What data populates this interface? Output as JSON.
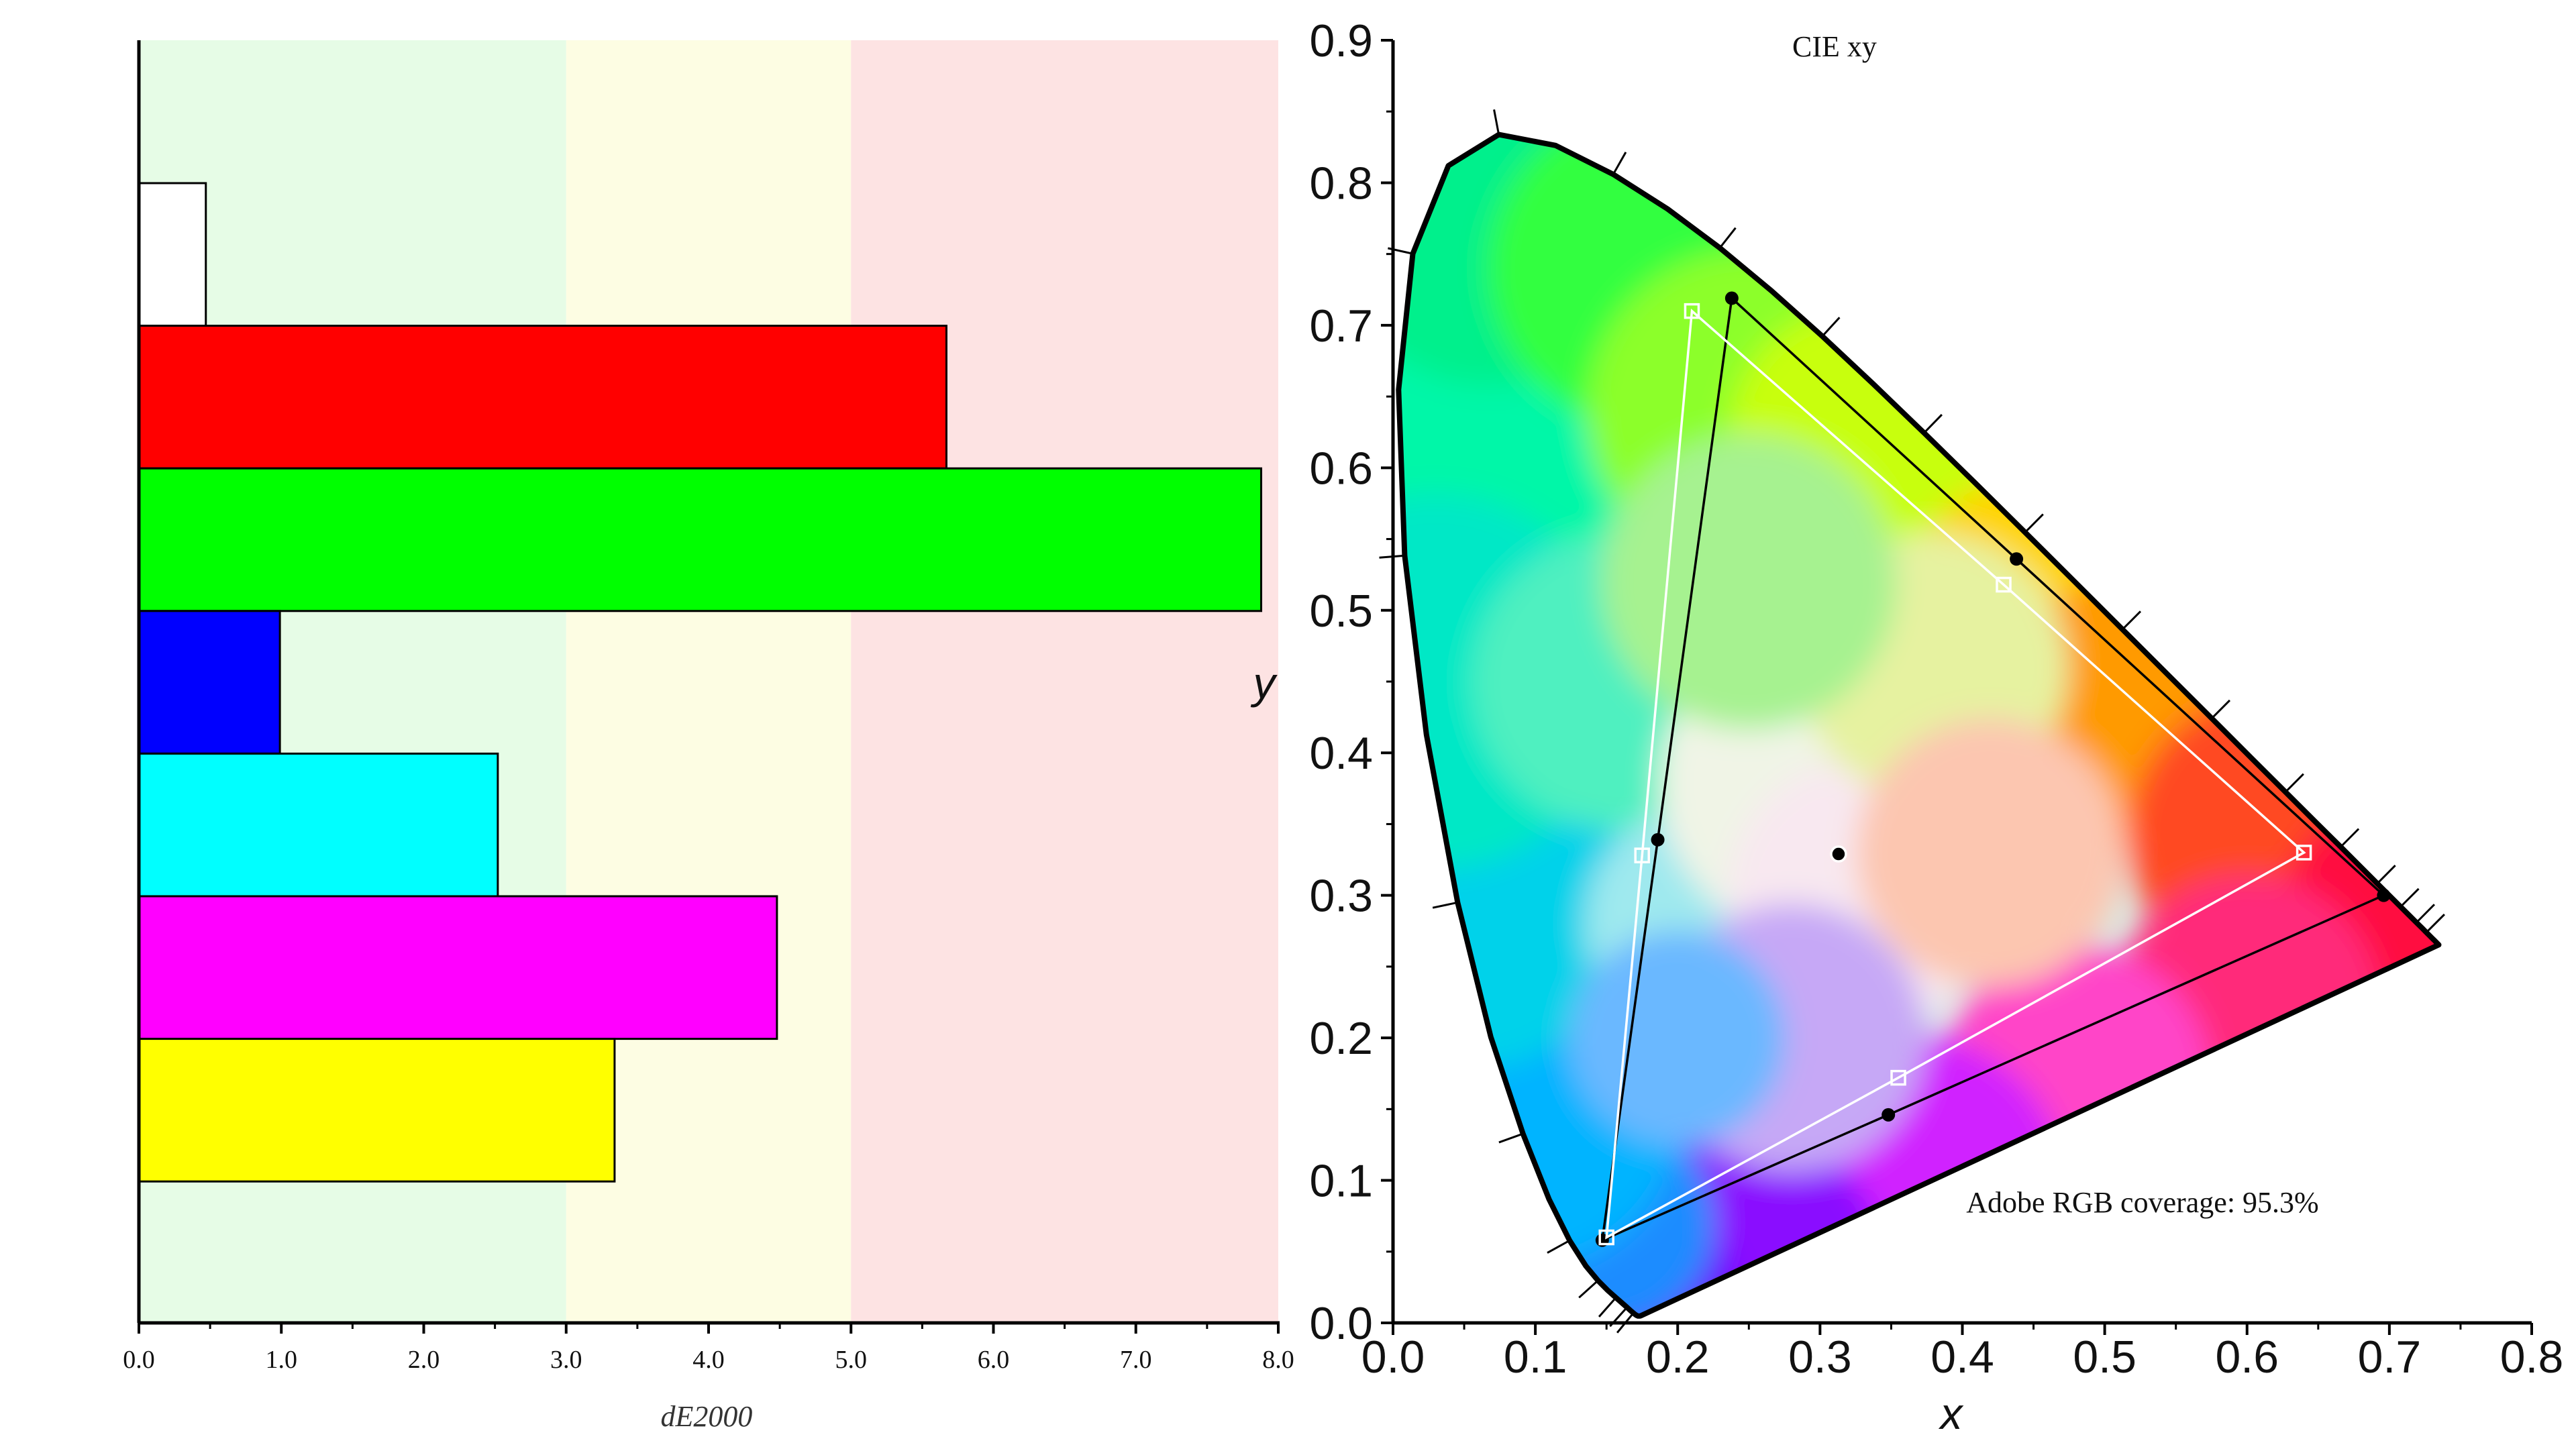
{
  "chart_data": [
    {
      "type": "bar",
      "orientation": "horizontal",
      "xlabel": "dE2000",
      "xlim": [
        0,
        8
      ],
      "xticks": [
        "0.0",
        "1.0",
        "2.0",
        "3.0",
        "4.0",
        "5.0",
        "6.0",
        "7.0",
        "8.0"
      ],
      "bands": [
        {
          "from": 0,
          "to": 3,
          "color": "#e6fce6"
        },
        {
          "from": 3,
          "to": 5,
          "color": "#fdfde3"
        },
        {
          "from": 5,
          "to": 8,
          "color": "#fde3e3"
        }
      ],
      "bars": [
        {
          "color": "#ffffff",
          "value": 0.47
        },
        {
          "color": "#ff0000",
          "value": 5.67
        },
        {
          "color": "#00ff00",
          "value": 7.88
        },
        {
          "color": "#0000ff",
          "value": 0.99
        },
        {
          "color": "#00ffff",
          "value": 2.52
        },
        {
          "color": "#ff00ff",
          "value": 4.48
        },
        {
          "color": "#ffff00",
          "value": 3.34
        }
      ]
    },
    {
      "type": "scatter",
      "title": "CIE xy",
      "xlabel": "x",
      "ylabel": "y",
      "xlim": [
        0,
        0.8
      ],
      "ylim": [
        0,
        0.9
      ],
      "xticks": [
        "0.0",
        "0.1",
        "0.2",
        "0.3",
        "0.4",
        "0.5",
        "0.6",
        "0.7",
        "0.8"
      ],
      "yticks": [
        "0.0",
        "0.1",
        "0.2",
        "0.3",
        "0.4",
        "0.5",
        "0.6",
        "0.7",
        "0.8",
        "0.9"
      ],
      "annotation": "Adobe RGB coverage: 95.3%",
      "spectral_locus": [
        [
          0.1741,
          0.005
        ],
        [
          0.174,
          0.005
        ],
        [
          0.1738,
          0.0049
        ],
        [
          0.1736,
          0.0049
        ],
        [
          0.1733,
          0.0048
        ],
        [
          0.173,
          0.0048
        ],
        [
          0.1726,
          0.0048
        ],
        [
          0.1721,
          0.0048
        ],
        [
          0.1714,
          0.0051
        ],
        [
          0.1703,
          0.0058
        ],
        [
          0.1689,
          0.0069
        ],
        [
          0.1669,
          0.0086
        ],
        [
          0.1644,
          0.0109
        ],
        [
          0.1611,
          0.0138
        ],
        [
          0.1566,
          0.0177
        ],
        [
          0.151,
          0.0227
        ],
        [
          0.144,
          0.0297
        ],
        [
          0.1355,
          0.0399
        ],
        [
          0.1241,
          0.0578
        ],
        [
          0.1096,
          0.0868
        ],
        [
          0.0913,
          0.1327
        ],
        [
          0.0687,
          0.2007
        ],
        [
          0.0454,
          0.295
        ],
        [
          0.0235,
          0.4127
        ],
        [
          0.0082,
          0.5384
        ],
        [
          0.0039,
          0.6548
        ],
        [
          0.0139,
          0.7502
        ],
        [
          0.0389,
          0.812
        ],
        [
          0.0743,
          0.8338
        ],
        [
          0.1142,
          0.8262
        ],
        [
          0.1547,
          0.8059
        ],
        [
          0.1929,
          0.7816
        ],
        [
          0.2296,
          0.7543
        ],
        [
          0.2658,
          0.7243
        ],
        [
          0.3016,
          0.6923
        ],
        [
          0.3373,
          0.6589
        ],
        [
          0.3731,
          0.6245
        ],
        [
          0.4087,
          0.5896
        ],
        [
          0.4441,
          0.5547
        ],
        [
          0.4788,
          0.5202
        ],
        [
          0.5125,
          0.4866
        ],
        [
          0.5448,
          0.4544
        ],
        [
          0.5752,
          0.4242
        ],
        [
          0.6029,
          0.3965
        ],
        [
          0.627,
          0.3725
        ],
        [
          0.6482,
          0.3514
        ],
        [
          0.6658,
          0.334
        ],
        [
          0.6801,
          0.3197
        ],
        [
          0.6915,
          0.3083
        ],
        [
          0.7006,
          0.2993
        ],
        [
          0.7079,
          0.292
        ],
        [
          0.714,
          0.2859
        ],
        [
          0.719,
          0.2809
        ],
        [
          0.723,
          0.277
        ],
        [
          0.726,
          0.274
        ],
        [
          0.7283,
          0.2717
        ],
        [
          0.73,
          0.27
        ],
        [
          0.7311,
          0.2689
        ],
        [
          0.732,
          0.268
        ],
        [
          0.7327,
          0.2673
        ],
        [
          0.7334,
          0.2666
        ],
        [
          0.734,
          0.266
        ],
        [
          0.7344,
          0.2656
        ],
        [
          0.7346,
          0.2654
        ],
        [
          0.7347,
          0.2653
        ]
      ],
      "series": [
        {
          "marker": "filled-dot",
          "line_color": "#000000",
          "points": [
            [
              0.696,
              0.3
            ],
            [
              0.438,
              0.536
            ],
            [
              0.238,
              0.719
            ],
            [
              0.186,
              0.339
            ],
            [
              0.147,
              0.058
            ],
            [
              0.348,
              0.146
            ]
          ]
        },
        {
          "marker": "open-square",
          "line_color": "#ffffff",
          "points": [
            [
              0.64,
              0.33
            ],
            [
              0.429,
              0.518
            ],
            [
              0.21,
              0.71
            ],
            [
              0.175,
              0.328
            ],
            [
              0.15,
              0.06
            ],
            [
              0.355,
              0.172
            ]
          ]
        },
        {
          "marker": "white-point",
          "points": [
            [
              0.313,
              0.329
            ]
          ]
        }
      ]
    }
  ]
}
